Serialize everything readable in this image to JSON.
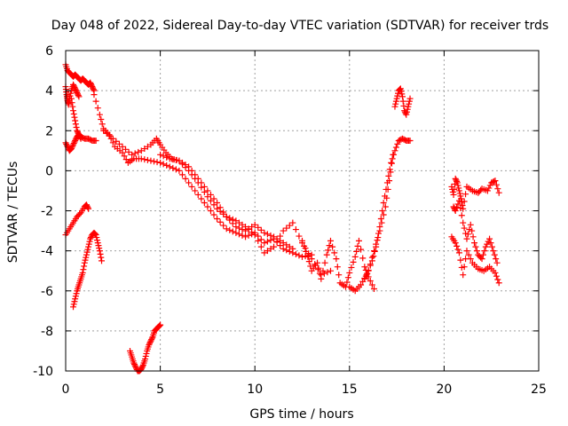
{
  "chart_data": {
    "type": "scatter",
    "title": "Day 048 of 2022, Sidereal Day-to-day VTEC variation (SDTVAR) for receiver trds",
    "xlabel": "GPS time / hours",
    "ylabel": "SDTVAR / TECUs",
    "xlim": [
      0,
      25
    ],
    "ylim": [
      -10,
      6
    ],
    "xticks": [
      0,
      5,
      10,
      15,
      20,
      25
    ],
    "yticks": [
      -10,
      -8,
      -6,
      -4,
      -2,
      0,
      2,
      4,
      6
    ],
    "grid": true,
    "marker": "+",
    "color": "#ff0000",
    "series": [
      {
        "name": "top-left-arc",
        "x": [
          0,
          0.1,
          0.2,
          0.3,
          0.4,
          0.5,
          0.6,
          0.7,
          0.8,
          0.9,
          1.0,
          1.1,
          1.2,
          1.3,
          1.4,
          1.5
        ],
        "y": [
          5.3,
          5.0,
          4.9,
          4.8,
          4.7,
          4.8,
          4.7,
          4.6,
          4.5,
          4.6,
          4.5,
          4.4,
          4.3,
          4.4,
          4.2,
          4.0
        ]
      },
      {
        "name": "top-left-lower",
        "x": [
          0,
          0.05,
          0.1,
          0.15,
          0.2,
          0.3,
          0.4,
          0.5,
          0.6,
          0.7
        ],
        "y": [
          4.2,
          3.8,
          3.5,
          3.3,
          3.6,
          4.0,
          4.3,
          4.1,
          3.9,
          3.7
        ]
      },
      {
        "name": "left-low-band",
        "x": [
          0,
          0.1,
          0.2,
          0.3,
          0.4,
          0.5,
          0.6,
          0.7,
          0.8,
          1.0,
          1.2,
          1.4,
          1.6
        ],
        "y": [
          1.4,
          1.2,
          1.0,
          1.1,
          1.3,
          1.5,
          1.7,
          1.8,
          1.7,
          1.6,
          1.6,
          1.5,
          1.5
        ]
      },
      {
        "name": "left-mid-drop",
        "x": [
          0.3,
          0.4,
          0.5,
          0.6,
          0.7,
          0.8
        ],
        "y": [
          3.6,
          3.0,
          2.5,
          2.0,
          1.8,
          1.6
        ]
      },
      {
        "name": "left-negative-arc",
        "x": [
          0,
          0.2,
          0.4,
          0.6,
          0.8,
          1.0,
          1.1,
          1.2
        ],
        "y": [
          -3.2,
          -2.9,
          -2.6,
          -2.3,
          -2.1,
          -1.8,
          -1.7,
          -1.9
        ]
      },
      {
        "name": "left-rising-branch",
        "x": [
          0.4,
          0.5,
          0.6,
          0.7,
          0.8,
          0.9,
          1.0,
          1.1,
          1.2,
          1.3,
          1.4,
          1.5,
          1.6,
          1.7,
          1.8,
          1.9
        ],
        "y": [
          -6.8,
          -6.4,
          -6.0,
          -5.7,
          -5.4,
          -5.1,
          -4.6,
          -4.2,
          -3.8,
          -3.4,
          -3.2,
          -3.1,
          -3.2,
          -3.6,
          -4.0,
          -4.5
        ]
      },
      {
        "name": "bottom-dip",
        "x": [
          3.4,
          3.5,
          3.6,
          3.7,
          3.8,
          3.9,
          4.0,
          4.1,
          4.2,
          4.3,
          4.4,
          4.5,
          4.6,
          4.7,
          4.8,
          4.9,
          5.0
        ],
        "y": [
          -9.0,
          -9.3,
          -9.6,
          -9.8,
          -10.0,
          -10.0,
          -9.9,
          -9.7,
          -9.4,
          -9.0,
          -8.7,
          -8.5,
          -8.3,
          -8.0,
          -7.9,
          -7.8,
          -7.7
        ]
      },
      {
        "name": "main-track-a",
        "x": [
          1.5,
          1.8,
          2.0,
          2.3,
          2.6,
          3.0,
          3.3,
          3.6,
          4.0,
          4.5,
          5.0,
          5.5,
          6.0,
          6.5,
          7.0,
          7.5,
          8.0,
          8.5,
          9.0,
          9.5,
          10.0,
          10.5,
          11.0,
          11.5,
          12.0,
          12.5,
          13.0
        ],
        "y": [
          3.8,
          2.8,
          2.1,
          1.8,
          1.2,
          0.9,
          0.4,
          0.6,
          0.6,
          0.5,
          0.4,
          0.2,
          0.0,
          -0.6,
          -1.2,
          -1.8,
          -2.4,
          -2.9,
          -3.1,
          -3.3,
          -3.1,
          -3.6,
          -3.4,
          -3.9,
          -4.1,
          -4.3,
          -4.2
        ]
      },
      {
        "name": "main-track-b",
        "x": [
          2.0,
          2.5,
          3.0,
          3.5,
          4.0,
          4.5,
          4.8,
          5.0,
          5.3,
          5.6,
          6.0,
          6.5,
          7.0,
          7.5,
          8.0,
          8.5,
          9.0,
          9.5,
          10.0,
          10.5,
          11.0,
          11.5,
          12.0
        ],
        "y": [
          2.0,
          1.6,
          1.2,
          0.8,
          1.0,
          1.3,
          1.6,
          1.3,
          0.9,
          0.6,
          0.5,
          0.2,
          -0.4,
          -1.0,
          -1.6,
          -2.3,
          -2.8,
          -3.0,
          -2.7,
          -3.1,
          -3.3,
          -3.6,
          -3.9
        ]
      },
      {
        "name": "main-track-c",
        "x": [
          5.0,
          5.5,
          6.0,
          6.5,
          7.0,
          7.5,
          8.0,
          8.5,
          9.0,
          9.5,
          10.0,
          10.5,
          11.0,
          11.5,
          12.0,
          12.5,
          13.0,
          13.5,
          14.0
        ],
        "y": [
          0.8,
          0.6,
          0.5,
          0.0,
          -0.6,
          -1.3,
          -1.9,
          -2.3,
          -2.5,
          -2.8,
          -3.2,
          -4.1,
          -3.8,
          -3.0,
          -2.6,
          -3.6,
          -4.4,
          -5.2,
          -5.0
        ]
      },
      {
        "name": "noisy-cluster",
        "x": [
          12.5,
          12.8,
          13.0,
          13.3,
          13.5,
          13.8,
          14.0,
          14.3,
          14.5,
          14.8,
          15.0,
          15.3,
          15.5,
          15.8,
          16.0,
          16.3
        ],
        "y": [
          -3.5,
          -4.3,
          -5.0,
          -4.6,
          -5.4,
          -4.2,
          -3.5,
          -4.4,
          -5.6,
          -5.8,
          -5.1,
          -4.3,
          -3.5,
          -4.8,
          -5.3,
          -5.9
        ]
      },
      {
        "name": "rising-branch",
        "x": [
          15.0,
          15.3,
          15.6,
          15.9,
          16.2,
          16.4,
          16.6,
          16.8,
          17.0,
          17.2,
          17.4,
          17.6,
          17.8,
          18.0,
          18.2
        ],
        "y": [
          -5.8,
          -6.0,
          -5.7,
          -5.2,
          -4.5,
          -3.8,
          -2.8,
          -1.6,
          -0.6,
          0.4,
          1.0,
          1.5,
          1.6,
          1.5,
          1.5
        ]
      },
      {
        "name": "rising-branch-2",
        "x": [
          15.8,
          16.0,
          16.3,
          16.6,
          16.9,
          17.1,
          17.3
        ],
        "y": [
          -5.4,
          -5.0,
          -4.0,
          -3.0,
          -1.8,
          -0.5,
          0.8
        ]
      },
      {
        "name": "top-right-spike",
        "x": [
          17.4,
          17.5,
          17.6,
          17.7,
          17.8,
          17.9,
          18.0,
          18.1,
          18.2
        ],
        "y": [
          3.2,
          3.6,
          4.0,
          4.1,
          3.7,
          3.0,
          2.8,
          3.2,
          3.6
        ]
      },
      {
        "name": "right-group-a",
        "x": [
          20.4,
          20.5,
          20.6,
          20.7,
          20.8,
          20.9,
          21.0,
          21.2,
          21.5,
          21.8,
          22.0,
          22.3,
          22.5,
          22.7,
          22.9
        ],
        "y": [
          -0.8,
          -1.2,
          -0.4,
          -0.6,
          -1.0,
          -1.4,
          -1.9,
          -0.8,
          -1.0,
          -1.1,
          -0.9,
          -1.0,
          -0.6,
          -0.5,
          -1.1
        ]
      },
      {
        "name": "right-group-b",
        "x": [
          20.5,
          20.6,
          20.8,
          21.0,
          21.2,
          21.4,
          21.6,
          21.8,
          22.0,
          22.2,
          22.4,
          22.6,
          22.8
        ],
        "y": [
          -1.8,
          -2.0,
          -1.5,
          -2.6,
          -3.4,
          -2.7,
          -3.6,
          -4.2,
          -4.4,
          -3.8,
          -3.4,
          -4.0,
          -4.6
        ]
      },
      {
        "name": "right-group-c",
        "x": [
          20.4,
          20.6,
          20.8,
          21.0,
          21.2,
          21.5,
          21.8,
          22.1,
          22.4,
          22.7,
          22.9
        ],
        "y": [
          -3.3,
          -3.6,
          -4.1,
          -5.2,
          -4.0,
          -4.6,
          -4.9,
          -5.0,
          -4.8,
          -5.1,
          -5.6
        ]
      }
    ]
  }
}
